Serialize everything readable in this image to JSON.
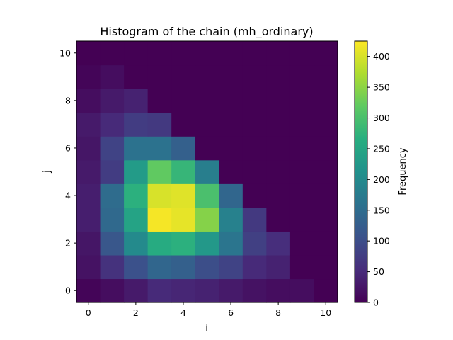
{
  "chart_data": {
    "type": "heatmap",
    "title": "Histogram of the chain (mh_ordinary)",
    "xlabel": "i",
    "ylabel": "j",
    "colorbar_label": "Frequency",
    "colormap": "viridis",
    "x": [
      0,
      1,
      2,
      3,
      4,
      5,
      6,
      7,
      8,
      9,
      10
    ],
    "y": [
      0,
      1,
      2,
      3,
      4,
      5,
      6,
      7,
      8,
      9,
      10
    ],
    "xlim": [
      -0.5,
      10.5
    ],
    "ylim": [
      -0.5,
      10.5
    ],
    "x_ticks": [
      0,
      2,
      4,
      6,
      8,
      10
    ],
    "y_ticks": [
      0,
      2,
      4,
      6,
      8,
      10
    ],
    "vmin": 0,
    "vmax": 425,
    "colorbar_ticks": [
      0,
      50,
      100,
      150,
      200,
      250,
      300,
      350,
      400
    ],
    "frequencies_by_row": [
      [
        5,
        15,
        30,
        50,
        45,
        40,
        30,
        20,
        15,
        15,
        0
      ],
      [
        20,
        60,
        105,
        140,
        130,
        100,
        85,
        50,
        40,
        0,
        0
      ],
      [
        25,
        115,
        200,
        260,
        270,
        225,
        165,
        80,
        55,
        0,
        0
      ],
      [
        35,
        145,
        245,
        420,
        410,
        345,
        185,
        70,
        0,
        0,
        0
      ],
      [
        35,
        150,
        270,
        400,
        405,
        300,
        140,
        0,
        0,
        0,
        0
      ],
      [
        30,
        75,
        230,
        320,
        280,
        180,
        0,
        0,
        0,
        0,
        0
      ],
      [
        25,
        85,
        160,
        160,
        130,
        0,
        0,
        0,
        0,
        0,
        0
      ],
      [
        30,
        50,
        75,
        70,
        0,
        0,
        0,
        0,
        0,
        0,
        0
      ],
      [
        15,
        30,
        40,
        0,
        0,
        0,
        0,
        0,
        0,
        0,
        0
      ],
      [
        5,
        15,
        0,
        0,
        0,
        0,
        0,
        0,
        0,
        0,
        0
      ],
      [
        0,
        0,
        0,
        0,
        0,
        0,
        0,
        0,
        0,
        0,
        0
      ]
    ]
  }
}
